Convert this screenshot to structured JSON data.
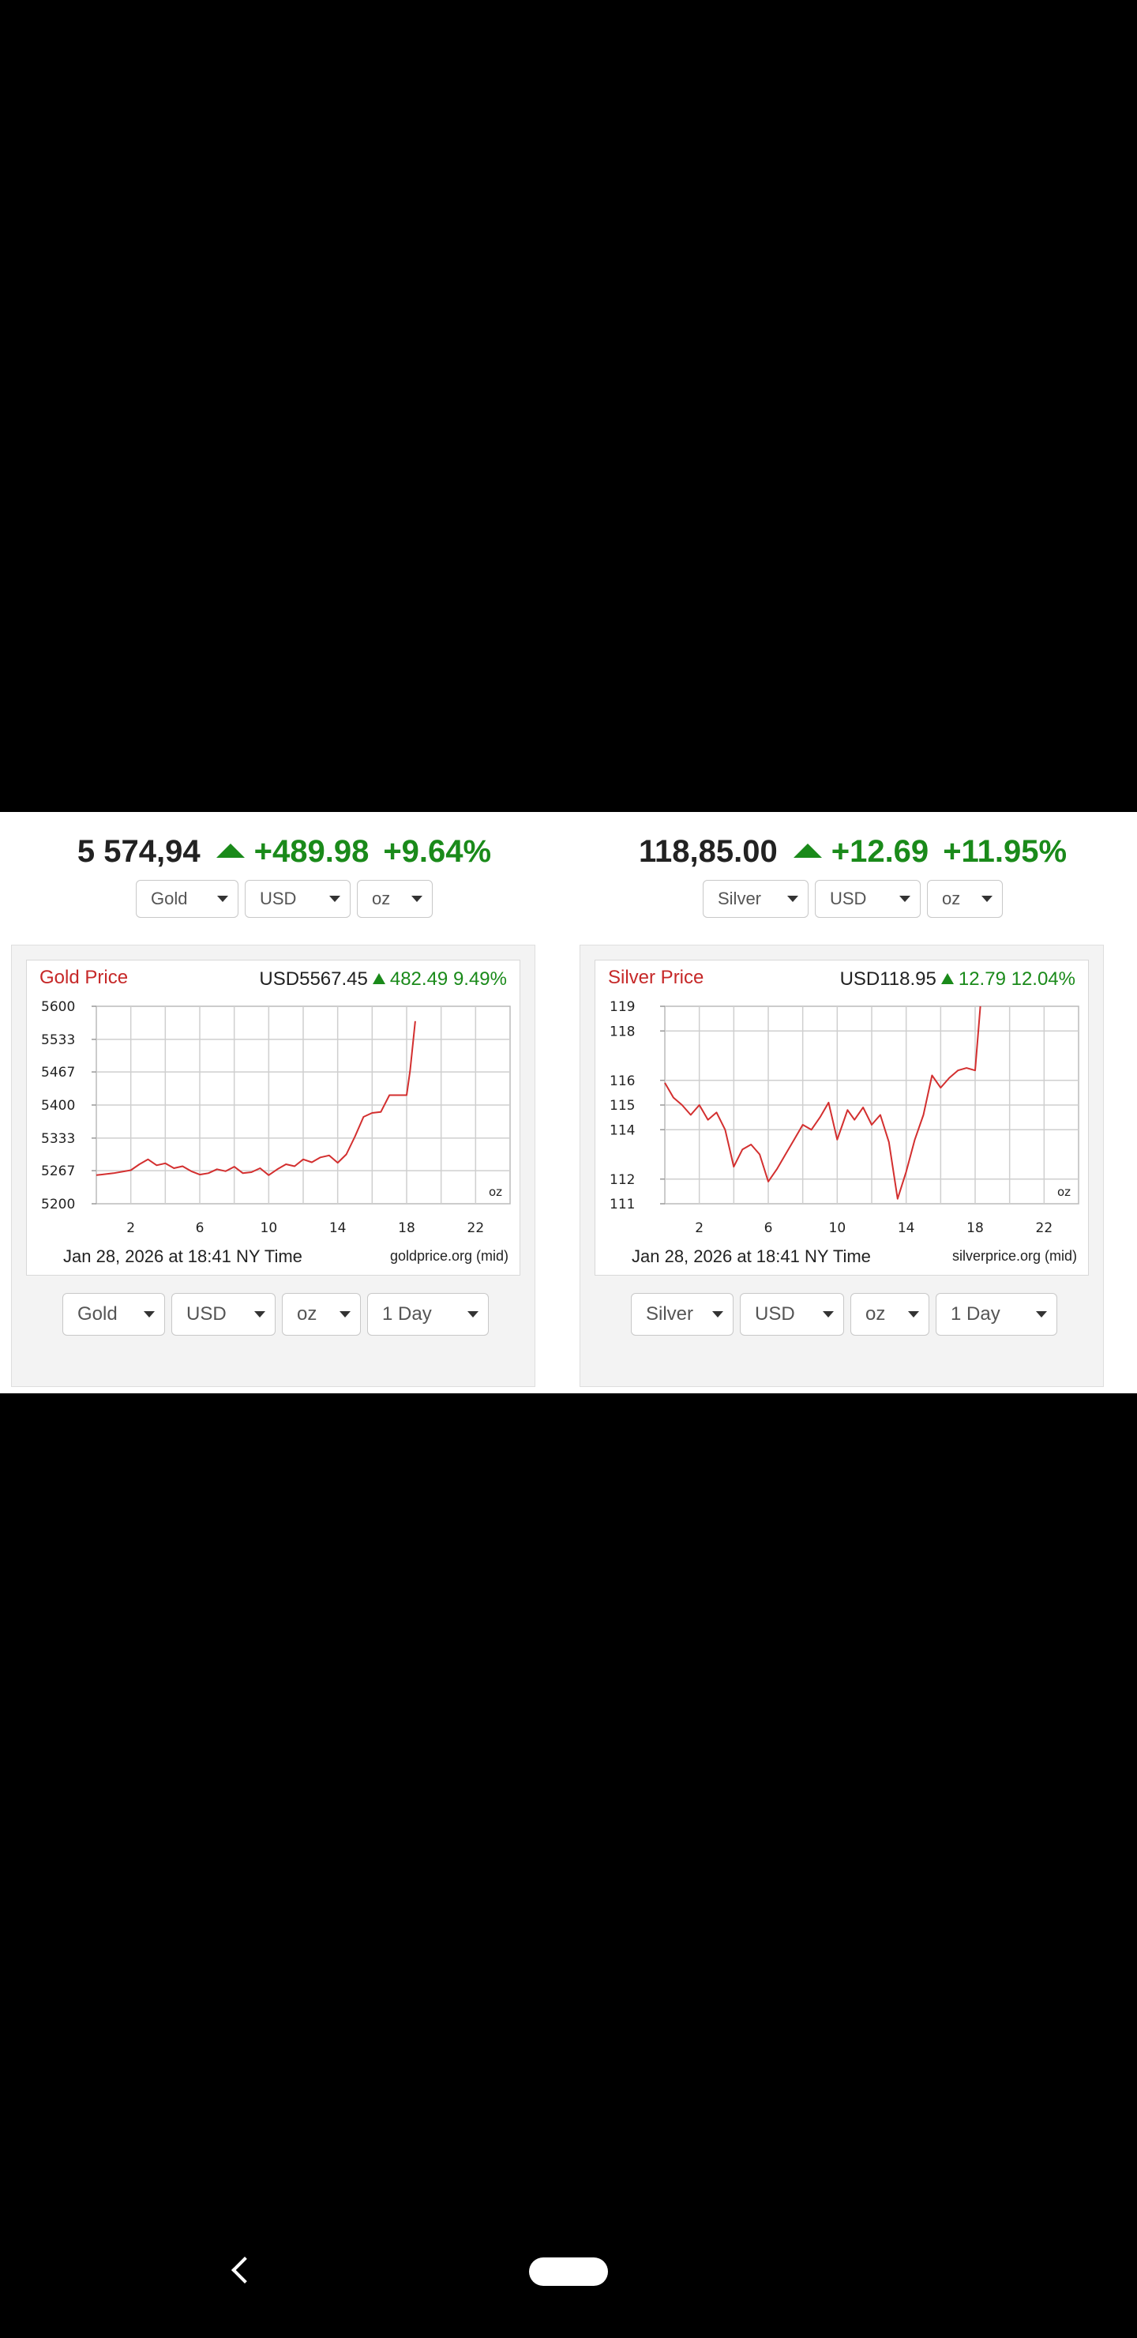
{
  "gold": {
    "ticker": {
      "price": "5 574,94",
      "change": "+489.98",
      "percent": "+9.64%"
    },
    "top_selects": [
      "Gold",
      "USD",
      "oz"
    ],
    "chart": {
      "title": "Gold Price",
      "quote_price": "USD5567.45",
      "quote_change": "482.49",
      "quote_percent": "9.49%",
      "unit": "oz",
      "timestamp": "Jan 28, 2026 at 18:41 NY Time",
      "source": "goldprice.org (mid)"
    },
    "bottom_selects": [
      "Gold",
      "USD",
      "oz",
      "1 Day"
    ]
  },
  "silver": {
    "ticker": {
      "price": "118,85.00",
      "change": "+12.69",
      "percent": "+11.95%"
    },
    "top_selects": [
      "Silver",
      "USD",
      "oz"
    ],
    "chart": {
      "title": "Silver Price",
      "quote_price": "USD118.95",
      "quote_change": "12.79",
      "quote_percent": "12.04%",
      "unit": "oz",
      "timestamp": "Jan 28, 2026 at 18:41 NY Time",
      "source": "silverprice.org (mid)"
    },
    "bottom_selects": [
      "Silver",
      "USD",
      "oz",
      "1 Day"
    ]
  },
  "colors": {
    "up": "#1a8a1a",
    "line": "#d32f2f",
    "title": "#c62828"
  },
  "icons": {
    "arrow": "triangle-up-icon",
    "chevron": "chevron-down-icon",
    "back": "back-icon",
    "home": "home-pill-icon"
  },
  "chart_data": [
    {
      "type": "line",
      "title": "Gold Price",
      "xlabel": "",
      "ylabel": "",
      "x_ticks": [
        2,
        6,
        10,
        14,
        18,
        22
      ],
      "y_ticks": [
        5200,
        5267,
        5333,
        5400,
        5467,
        5533,
        5600
      ],
      "xlim": [
        0,
        24
      ],
      "ylim": [
        5200,
        5600
      ],
      "grid": true,
      "series": [
        {
          "x": [
            0,
            1,
            2,
            2.5,
            3,
            3.5,
            4,
            4.5,
            5,
            5.5,
            6,
            6.5,
            7,
            7.5,
            8,
            8.5,
            9,
            9.5,
            10,
            10.5,
            11,
            11.5,
            12,
            12.5,
            13,
            13.5,
            14,
            14.5,
            15,
            15.5,
            16,
            16.5,
            17,
            17.5,
            18,
            18.2,
            18.5
          ],
          "y": [
            5258,
            5262,
            5268,
            5280,
            5290,
            5278,
            5282,
            5272,
            5276,
            5266,
            5259,
            5262,
            5270,
            5266,
            5275,
            5262,
            5264,
            5272,
            5258,
            5270,
            5280,
            5276,
            5290,
            5284,
            5294,
            5298,
            5283,
            5300,
            5336,
            5376,
            5384,
            5386,
            5420,
            5420,
            5420,
            5470,
            5570
          ]
        }
      ]
    },
    {
      "type": "line",
      "title": "Silver Price",
      "xlabel": "",
      "ylabel": "",
      "x_ticks": [
        2,
        6,
        10,
        14,
        18,
        22
      ],
      "y_ticks": [
        111,
        112,
        114,
        115,
        116,
        118,
        119
      ],
      "xlim": [
        0,
        24
      ],
      "ylim": [
        111,
        119
      ],
      "grid": true,
      "series": [
        {
          "x": [
            0,
            0.5,
            1,
            1.5,
            2,
            2.5,
            3,
            3.5,
            4,
            4.5,
            5,
            5.5,
            6,
            6.5,
            7,
            7.5,
            8,
            8.5,
            9,
            9.5,
            10,
            10.3,
            10.6,
            11,
            11.5,
            12,
            12.5,
            13,
            13.5,
            14,
            14.5,
            15,
            15.5,
            16,
            16.5,
            17,
            17.5,
            18,
            18.3
          ],
          "y": [
            115.9,
            115.3,
            115.0,
            114.6,
            115.0,
            114.4,
            114.7,
            114.0,
            112.5,
            113.2,
            113.4,
            113.0,
            111.9,
            112.4,
            113.0,
            113.6,
            114.2,
            114.0,
            114.5,
            115.1,
            113.6,
            114.2,
            114.8,
            114.4,
            114.9,
            114.2,
            114.6,
            113.5,
            111.2,
            112.3,
            113.6,
            114.6,
            116.2,
            115.7,
            116.1,
            116.4,
            116.5,
            116.4,
            119.0
          ]
        }
      ]
    }
  ]
}
